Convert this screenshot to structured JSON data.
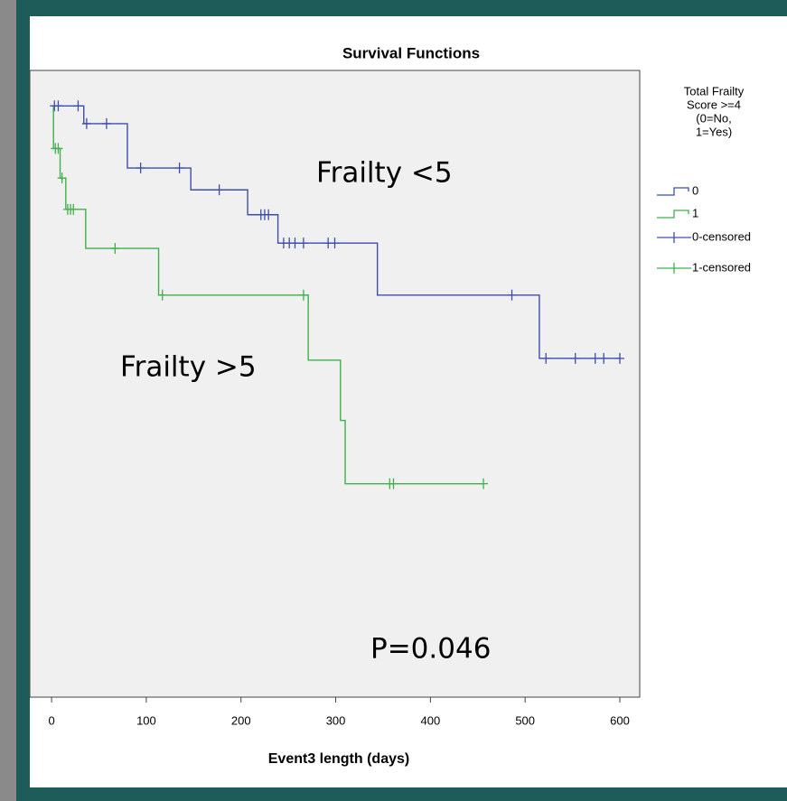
{
  "chart_data": {
    "type": "step",
    "title": "Survival Functions",
    "x_label": "Event3 length (days)",
    "xlim": [
      -23,
      621
    ],
    "ylim": [
      0,
      1.06
    ],
    "xticks": [
      0,
      100,
      200,
      300,
      400,
      500,
      600
    ],
    "legend_title": [
      "Total Frailty",
      "Score >=4",
      "(0=No,",
      "1=Yes)"
    ],
    "legend_position": "right",
    "annotations": [
      "Frailty <5",
      "Frailty >5",
      "P=0.046"
    ],
    "series": [
      {
        "name": "0",
        "color": "#3d4db0",
        "x": [
          0,
          34,
          80,
          147,
          207,
          239,
          344,
          515,
          600
        ],
        "values": [
          1,
          0.97,
          0.895,
          0.858,
          0.816,
          0.768,
          0.68,
          0.573,
          0.573
        ]
      },
      {
        "name": "1",
        "color": "#3fb04a",
        "x": [
          0,
          2,
          9,
          15,
          36,
          113,
          271,
          305,
          310,
          456
        ],
        "values": [
          1,
          0.928,
          0.878,
          0.825,
          0.759,
          0.68,
          0.57,
          0.468,
          0.361,
          0.361
        ]
      },
      {
        "name": "0-censored",
        "color": "#3d4db0",
        "censored": true,
        "x": [
          3,
          7,
          28,
          37,
          58,
          94,
          135,
          177,
          221,
          225,
          229,
          245,
          251,
          257,
          266,
          292,
          299,
          486,
          522,
          553,
          574,
          583,
          600
        ],
        "values": [
          1,
          1,
          1,
          0.97,
          0.97,
          0.895,
          0.895,
          0.858,
          0.816,
          0.816,
          0.816,
          0.768,
          0.768,
          0.768,
          0.768,
          0.768,
          0.768,
          0.68,
          0.573,
          0.573,
          0.573,
          0.573,
          0.573
        ]
      },
      {
        "name": "1-censored",
        "color": "#3fb04a",
        "censored": true,
        "x": [
          4,
          7,
          11,
          17,
          20,
          23,
          67,
          117,
          266,
          357,
          361,
          456
        ],
        "values": [
          0.928,
          0.928,
          0.878,
          0.825,
          0.825,
          0.825,
          0.759,
          0.68,
          0.68,
          0.361,
          0.361,
          0.361
        ]
      }
    ]
  }
}
